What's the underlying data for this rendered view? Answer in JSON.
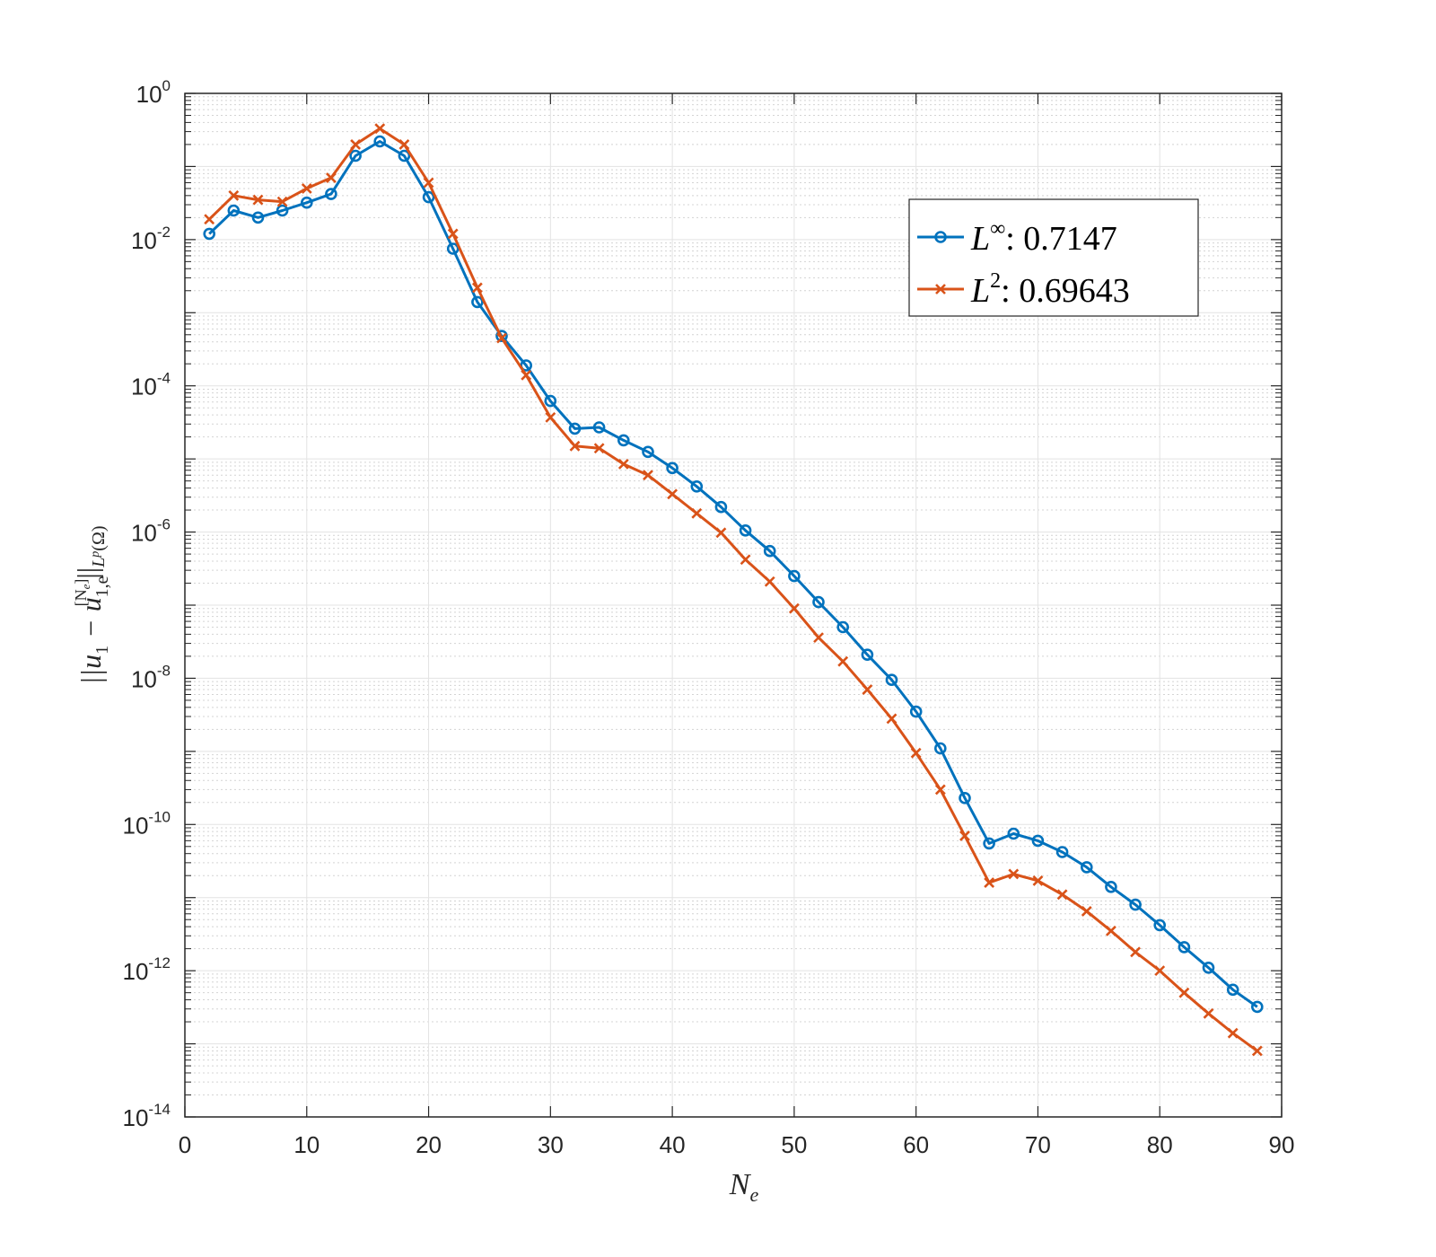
{
  "chart_data": {
    "type": "line",
    "title": "",
    "x_scale": "linear",
    "y_scale": "log",
    "xlim": [
      0,
      90
    ],
    "ylim_exp": [
      -14,
      0
    ],
    "x_ticks": [
      0,
      10,
      20,
      30,
      40,
      50,
      60,
      70,
      80,
      90
    ],
    "y_tick_exponents": [
      0,
      -2,
      -4,
      -6,
      -8,
      -10,
      -12,
      -14
    ],
    "grid": true,
    "minor_grid": true,
    "legend_position": "upper-right",
    "xlabel": {
      "base": "N",
      "sub": "e"
    },
    "ylabel": {
      "open": "||u",
      "sub1": "1",
      "minus": " − u",
      "sub2": "1,e",
      "sup": "[N",
      "sup_sub": "e",
      "sup_close": "]",
      "close": "||",
      "norm": "L",
      "norm_sup": "p",
      "norm_arg": "(Ω)"
    },
    "x": [
      2,
      4,
      6,
      8,
      10,
      12,
      14,
      16,
      18,
      20,
      22,
      24,
      26,
      28,
      30,
      32,
      34,
      36,
      38,
      40,
      42,
      44,
      46,
      48,
      50,
      52,
      54,
      56,
      58,
      60,
      62,
      64,
      66,
      68,
      70,
      72,
      74,
      76,
      78,
      80,
      82,
      84,
      86,
      88
    ],
    "series": [
      {
        "name": "L∞",
        "label_base": "L",
        "label_sup": "∞",
        "label_value": ": 0.7147",
        "color": "#0072BD",
        "marker": "circle",
        "values": [
          0.012,
          0.025,
          0.02,
          0.025,
          0.032,
          0.042,
          0.14,
          0.22,
          0.14,
          0.038,
          0.0075,
          0.0014,
          0.00048,
          0.00019,
          6.2e-05,
          2.6e-05,
          2.7e-05,
          1.8e-05,
          1.25e-05,
          7.5e-06,
          4.2e-06,
          2.2e-06,
          1.05e-06,
          5.5e-07,
          2.5e-07,
          1.1e-07,
          5e-08,
          2.1e-08,
          9.5e-09,
          3.5e-09,
          1.1e-09,
          2.3e-10,
          5.5e-11,
          7.5e-11,
          6e-11,
          4.2e-11,
          2.6e-11,
          1.4e-11,
          8e-12,
          4.2e-12,
          2.1e-12,
          1.1e-12,
          5.5e-13,
          3.2e-13
        ]
      },
      {
        "name": "L2",
        "label_base": "L",
        "label_sup": "2",
        "label_value": ": 0.69643",
        "color": "#D95319",
        "marker": "x",
        "values": [
          0.019,
          0.04,
          0.035,
          0.033,
          0.05,
          0.07,
          0.2,
          0.33,
          0.2,
          0.06,
          0.012,
          0.0022,
          0.00045,
          0.00014,
          3.7e-05,
          1.5e-05,
          1.4e-05,
          8.5e-06,
          6e-06,
          3.3e-06,
          1.8e-06,
          9.8e-07,
          4.2e-07,
          2.1e-07,
          9e-08,
          3.6e-08,
          1.7e-08,
          7e-09,
          2.8e-09,
          9.5e-10,
          3e-10,
          7e-11,
          1.6e-11,
          2.1e-11,
          1.7e-11,
          1.1e-11,
          6.5e-12,
          3.5e-12,
          1.8e-12,
          1e-12,
          5e-13,
          2.6e-13,
          1.4e-13,
          8e-14
        ]
      }
    ]
  }
}
